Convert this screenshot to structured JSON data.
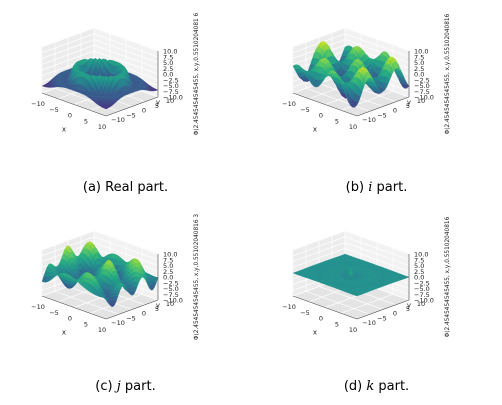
{
  "chart_data": [
    {
      "type": "surface3d",
      "panel_id": "a",
      "caption_label": "(a)",
      "caption_italic": "",
      "caption_text": "Real part.",
      "xlabel": "x",
      "ylabel": "y",
      "zlabel": "Φ(2.4545454545455, x,y,0.5510204081 6",
      "xticks": [
        "−10",
        "−5",
        "0",
        "5",
        "10"
      ],
      "yticks": [
        "−10",
        "−5",
        "0",
        "5",
        "10"
      ],
      "zticks": [
        "10.0",
        "7.5",
        "5.0",
        "2.5",
        "0.0",
        "−2.5",
        "−5.0",
        "−7.5",
        "−10.0"
      ],
      "xlim": [
        -10,
        10
      ],
      "ylim": [
        -10,
        10
      ],
      "zlim": [
        -10,
        10
      ],
      "colormap": "viridis",
      "shape": "radial ring: raised rim near r≈6, central peak, low plateau outside"
    },
    {
      "type": "surface3d",
      "panel_id": "b",
      "caption_label": "(b)",
      "caption_italic": "i",
      "caption_text": "part.",
      "xlabel": "x",
      "ylabel": "y",
      "zlabel": "Φ(2.4545454545455, x,y,0.55102040816",
      "xticks": [
        "−10",
        "−5",
        "0",
        "5",
        "10"
      ],
      "yticks": [
        "−10",
        "−5",
        "0",
        "5",
        "10"
      ],
      "zticks": [
        "10.0",
        "7.5",
        "5.0",
        "2.5",
        "0.0",
        "−2.5",
        "−5.0",
        "−7.5",
        "−10.0"
      ],
      "xlim": [
        -10,
        10
      ],
      "ylim": [
        -10,
        10
      ],
      "zlim": [
        -10,
        10
      ],
      "colormap": "viridis",
      "shape": "oscillating saddle with peaks along diagonals"
    },
    {
      "type": "surface3d",
      "panel_id": "c",
      "caption_label": "(c)",
      "caption_italic": "j",
      "caption_text": "part.",
      "xlabel": "x",
      "ylabel": "y",
      "zlabel": "Φ(2.4545454545455, x,y,0.55102040816 3",
      "xticks": [
        "−10",
        "−5",
        "0",
        "5",
        "10"
      ],
      "yticks": [
        "−10",
        "−5",
        "0",
        "5",
        "10"
      ],
      "zticks": [
        "10.0",
        "7.5",
        "5.0",
        "2.5",
        "0.0",
        "−2.5",
        "−5.0",
        "−7.5",
        "−10.0"
      ],
      "xlim": [
        -10,
        10
      ],
      "ylim": [
        -10,
        10
      ],
      "zlim": [
        -10,
        10
      ],
      "colormap": "viridis",
      "shape": "oscillating surface with ridges"
    },
    {
      "type": "surface3d",
      "panel_id": "d",
      "caption_label": "(d)",
      "caption_italic": "k",
      "caption_text": "part.",
      "xlabel": "x",
      "ylabel": "y",
      "zlabel": "Φ(2.4545454545455, x,y,0.55102040816",
      "xticks": [
        "−10",
        "−5",
        "0",
        "5",
        "10"
      ],
      "yticks": [
        "−10",
        "−5",
        "0",
        "5",
        "10"
      ],
      "zticks": [
        "10.0",
        "7.5",
        "5.0",
        "2.5",
        "0.0",
        "−2.5",
        "−5.0",
        "−7.5",
        "−10.0"
      ],
      "xlim": [
        -10,
        10
      ],
      "ylim": [
        -10,
        10
      ],
      "zlim": [
        -10,
        10
      ],
      "colormap": "viridis",
      "shape": "nearly flat plane near z≈0 with small central bump and faint rings"
    }
  ]
}
